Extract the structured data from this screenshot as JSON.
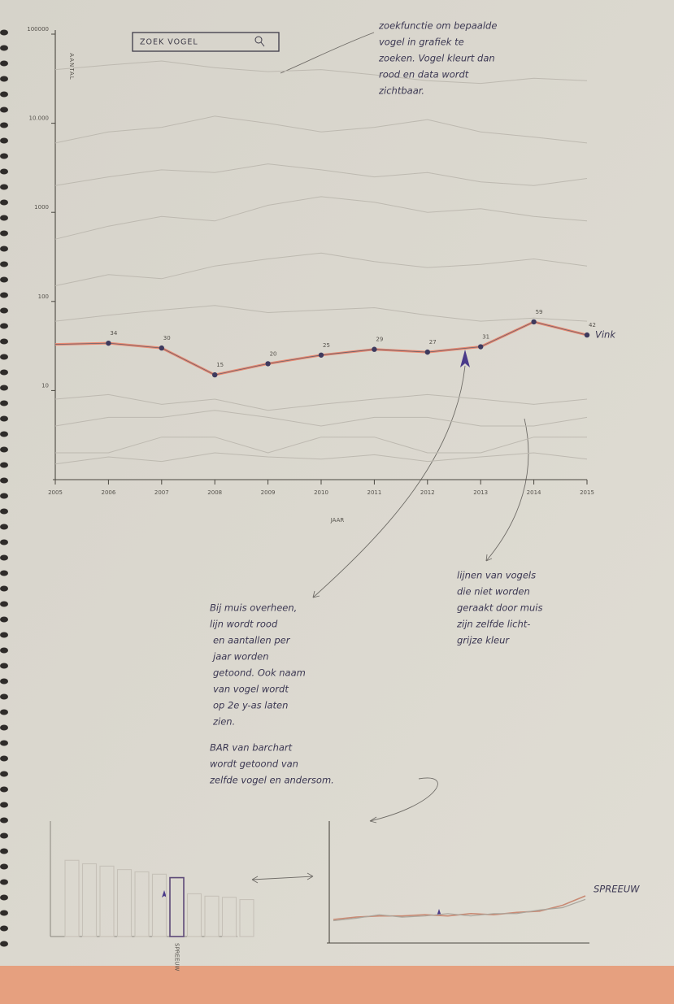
{
  "search": {
    "placeholder": "ZOEK VOGEL"
  },
  "annotations": [
    {
      "lines": [
        "zoekfunctie om bepaalde",
        "vogel in grafiek te",
        "zoeken. Vogel kleurt dan",
        "rood en data wordt",
        "zichtbaar."
      ]
    },
    {
      "lines": [
        "Bij muis overheen,",
        "lijn wordt rood",
        "en aantallen per",
        "jaar worden",
        "getoond. Ook naam",
        "van vogel wordt",
        "op 2e y-as laten",
        "zien."
      ]
    },
    {
      "lines": [
        "BAR van barchart",
        "wordt getoond van",
        "zelfde vogel en andersom."
      ]
    },
    {
      "lines": [
        "lijnen van vogels",
        "die niet worden",
        "geraakt door muis",
        "zijn zelfde licht-",
        "grijze kleur"
      ]
    }
  ],
  "chart_data": [
    {
      "type": "line",
      "y_label": "AANTAL",
      "x_label": "JAAR",
      "log_scale": true,
      "x": [
        2005,
        2006,
        2007,
        2008,
        2009,
        2010,
        2011,
        2012,
        2013,
        2014,
        2015
      ],
      "xlim": [
        2005,
        2015
      ],
      "xticks": [
        2005,
        2006,
        2007,
        2008,
        2009,
        2010,
        2011,
        2012,
        2013,
        2014,
        2015
      ],
      "ylim": [
        1,
        100000
      ],
      "yticks": [
        10,
        100,
        1000,
        {
          "value": 10000,
          "label": "10.000"
        },
        100000
      ],
      "series": [
        {
          "name": "Vink",
          "color": "#e98a72",
          "values": [
            33,
            34,
            30,
            15,
            20,
            25,
            29,
            27,
            31,
            59,
            42
          ]
        }
      ],
      "background_series": [
        {
          "color": "#bdb9b0",
          "values": [
            40000,
            45000,
            50000,
            42000,
            38000,
            40000,
            35000,
            30000,
            28000,
            32000,
            30000
          ]
        },
        {
          "color": "#bdb9b0",
          "values": [
            6000,
            8000,
            9000,
            12000,
            10000,
            8000,
            9000,
            11000,
            8000,
            7000,
            6000
          ]
        },
        {
          "color": "#bdb9b0",
          "values": [
            2000,
            2500,
            3000,
            2800,
            3500,
            3000,
            2500,
            2800,
            2200,
            2000,
            2400
          ]
        },
        {
          "color": "#bdb9b0",
          "values": [
            500,
            700,
            900,
            800,
            1200,
            1500,
            1300,
            1000,
            1100,
            900,
            800
          ]
        },
        {
          "color": "#bdb9b0",
          "values": [
            150,
            200,
            180,
            250,
            300,
            350,
            280,
            240,
            260,
            300,
            250
          ]
        },
        {
          "color": "#bdb9b0",
          "values": [
            60,
            70,
            80,
            90,
            75,
            80,
            85,
            70,
            60,
            65,
            60
          ]
        },
        {
          "color": "#bdb9b0",
          "values": [
            8,
            9,
            7,
            8,
            6,
            7,
            8,
            9,
            8,
            7,
            8
          ]
        },
        {
          "color": "#bdb9b0",
          "values": [
            4,
            5,
            5,
            6,
            5,
            4,
            5,
            5,
            4,
            4,
            5
          ]
        },
        {
          "color": "#bdb9b0",
          "values": [
            2,
            2,
            3,
            3,
            2,
            3,
            3,
            2,
            2,
            3,
            3
          ]
        },
        {
          "color": "#bdb9b0",
          "values": [
            1.5,
            1.8,
            1.6,
            2,
            1.8,
            1.7,
            1.9,
            1.6,
            1.8,
            2,
            1.7
          ]
        }
      ]
    },
    {
      "type": "bar",
      "ylim": [
        0,
        100
      ],
      "color": "#c6c1b8",
      "highlight_color": "#5e4a78",
      "highlight": 6,
      "categories": [
        null,
        null,
        null,
        null,
        null,
        null,
        "SPREEUW",
        null,
        null,
        null,
        null
      ],
      "values": [
        66,
        63,
        61,
        58,
        56,
        54,
        51,
        37,
        35,
        34,
        32
      ]
    },
    {
      "type": "line",
      "ylim": [
        0,
        100
      ],
      "series": [
        {
          "name": "SPREEUW",
          "color": "#c98a74",
          "values": [
            20,
            22,
            23,
            23,
            24,
            23,
            25,
            24,
            26,
            27,
            32,
            40
          ]
        },
        {
          "color": "#a9a59c",
          "values": [
            19,
            21,
            24,
            22,
            23,
            25,
            23,
            25,
            25,
            28,
            30,
            37
          ]
        }
      ]
    }
  ]
}
